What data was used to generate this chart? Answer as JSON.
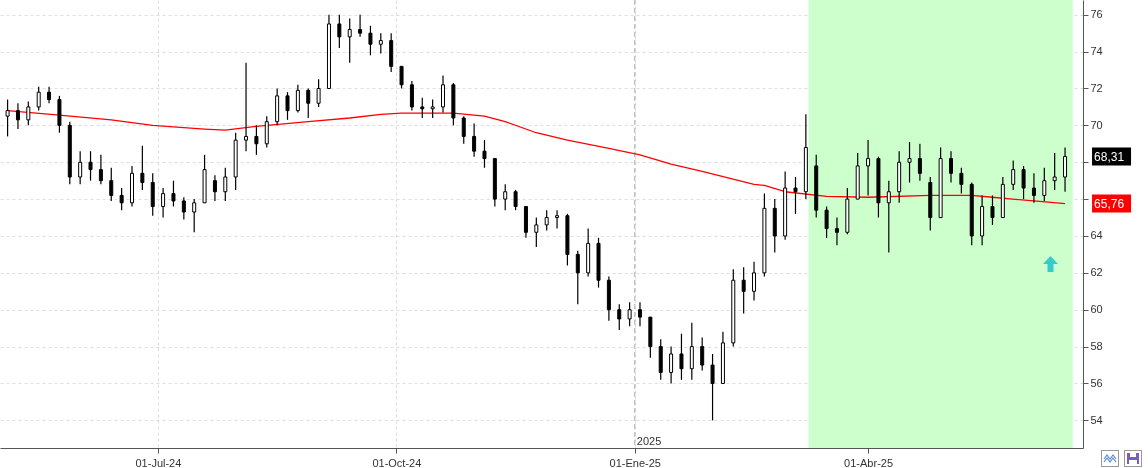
{
  "chart_data": {
    "type": "candlestick",
    "x": [
      "2024-05-04",
      "2024-05-08",
      "2024-05-12",
      "2024-05-16",
      "2024-05-20",
      "2024-05-24",
      "2024-05-28",
      "2024-06-01",
      "2024-06-05",
      "2024-06-09",
      "2024-06-13",
      "2024-06-17",
      "2024-06-21",
      "2024-06-25",
      "2024-06-29",
      "2024-07-03",
      "2024-07-07",
      "2024-07-11",
      "2024-07-15",
      "2024-07-19",
      "2024-07-23",
      "2024-07-27",
      "2024-07-31",
      "2024-08-04",
      "2024-08-08",
      "2024-08-12",
      "2024-08-16",
      "2024-08-20",
      "2024-08-24",
      "2024-08-28",
      "2024-09-01",
      "2024-09-05",
      "2024-09-09",
      "2024-09-13",
      "2024-09-17",
      "2024-09-21",
      "2024-09-25",
      "2024-09-29",
      "2024-10-03",
      "2024-10-07",
      "2024-10-11",
      "2024-10-15",
      "2024-10-19",
      "2024-10-23",
      "2024-10-27",
      "2024-10-31",
      "2024-11-04",
      "2024-11-08",
      "2024-11-12",
      "2024-11-16",
      "2024-11-20",
      "2024-11-24",
      "2024-11-28",
      "2024-12-02",
      "2024-12-06",
      "2024-12-10",
      "2024-12-14",
      "2024-12-18",
      "2024-12-22",
      "2024-12-26",
      "2024-12-30",
      "2025-01-03",
      "2025-01-07",
      "2025-01-11",
      "2025-01-15",
      "2025-01-19",
      "2025-01-23",
      "2025-01-27",
      "2025-01-31",
      "2025-02-04",
      "2025-02-08",
      "2025-02-12",
      "2025-02-16",
      "2025-02-20",
      "2025-02-24",
      "2025-02-28",
      "2025-03-04",
      "2025-03-08",
      "2025-03-12",
      "2025-03-16",
      "2025-03-20",
      "2025-03-24",
      "2025-03-28",
      "2025-04-01",
      "2025-04-05",
      "2025-04-09",
      "2025-04-13",
      "2025-04-17",
      "2025-04-21",
      "2025-04-25",
      "2025-04-29",
      "2025-05-03",
      "2025-05-07",
      "2025-05-11",
      "2025-05-15",
      "2025-05-19",
      "2025-05-23",
      "2025-05-27",
      "2025-05-31",
      "2025-06-04",
      "2025-06-08",
      "2025-06-12",
      "2025-06-16"
    ],
    "ohlc": [
      [
        70.5,
        71.4,
        69.4,
        70.8
      ],
      [
        70.8,
        71.2,
        69.8,
        70.3
      ],
      [
        70.3,
        71.3,
        70.0,
        71.0
      ],
      [
        71.0,
        72.1,
        70.8,
        71.8
      ],
      [
        71.8,
        72.1,
        71.2,
        71.4
      ],
      [
        71.4,
        71.6,
        69.6,
        70.0
      ],
      [
        70.0,
        70.2,
        66.8,
        67.2
      ],
      [
        67.2,
        68.6,
        66.8,
        68.0
      ],
      [
        68.0,
        68.6,
        67.0,
        67.6
      ],
      [
        67.6,
        68.4,
        66.8,
        67.0
      ],
      [
        67.0,
        67.7,
        65.9,
        66.2
      ],
      [
        66.2,
        66.6,
        65.4,
        65.8
      ],
      [
        65.8,
        67.8,
        65.6,
        67.4
      ],
      [
        67.4,
        68.9,
        66.5,
        66.9
      ],
      [
        66.9,
        67.4,
        65.1,
        65.6
      ],
      [
        65.6,
        66.6,
        65.0,
        66.3
      ],
      [
        66.3,
        67.0,
        65.6,
        65.9
      ],
      [
        65.9,
        66.1,
        64.9,
        65.3
      ],
      [
        65.3,
        66.0,
        64.2,
        65.8
      ],
      [
        65.8,
        68.4,
        65.8,
        67.6
      ],
      [
        67.0,
        67.3,
        65.9,
        66.4
      ],
      [
        66.4,
        67.7,
        65.9,
        67.2
      ],
      [
        67.2,
        69.6,
        66.5,
        69.2
      ],
      [
        69.2,
        73.4,
        68.6,
        69.4
      ],
      [
        69.4,
        70.0,
        68.4,
        69.0
      ],
      [
        69.0,
        70.5,
        68.8,
        70.2
      ],
      [
        70.2,
        72.0,
        70.0,
        71.6
      ],
      [
        71.6,
        71.8,
        70.3,
        70.8
      ],
      [
        70.8,
        72.2,
        70.7,
        71.9
      ],
      [
        71.9,
        72.0,
        70.4,
        71.2
      ],
      [
        71.2,
        72.5,
        71.0,
        72.0
      ],
      [
        72.0,
        76.0,
        72.0,
        75.5
      ],
      [
        75.5,
        76.0,
        74.2,
        74.8
      ],
      [
        74.8,
        75.8,
        73.4,
        75.2
      ],
      [
        75.2,
        76.0,
        74.8,
        75.0
      ],
      [
        75.0,
        75.4,
        73.8,
        74.4
      ],
      [
        74.4,
        75.0,
        73.9,
        74.6
      ],
      [
        74.6,
        75.0,
        72.9,
        73.2
      ],
      [
        73.2,
        73.2,
        72.0,
        72.2
      ],
      [
        72.2,
        72.4,
        70.8,
        71.0
      ],
      [
        71.0,
        71.5,
        70.4,
        70.9
      ],
      [
        70.9,
        71.4,
        70.4,
        71.0
      ],
      [
        71.0,
        72.7,
        70.7,
        72.2
      ],
      [
        72.2,
        72.3,
        70.0,
        70.4
      ],
      [
        70.4,
        70.5,
        69.0,
        69.4
      ],
      [
        69.4,
        70.1,
        68.3,
        68.6
      ],
      [
        68.6,
        69.2,
        67.7,
        68.2
      ],
      [
        68.2,
        68.2,
        65.6,
        66.0
      ],
      [
        66.0,
        66.8,
        65.4,
        66.4
      ],
      [
        66.4,
        66.5,
        65.4,
        65.6
      ],
      [
        65.6,
        65.6,
        63.9,
        64.2
      ],
      [
        64.2,
        65.0,
        63.4,
        64.6
      ],
      [
        64.6,
        65.4,
        64.3,
        65.0
      ],
      [
        65.0,
        65.4,
        64.4,
        65.1
      ],
      [
        65.1,
        65.2,
        62.4,
        63.0
      ],
      [
        63.0,
        63.2,
        60.3,
        62.0
      ],
      [
        62.0,
        64.4,
        61.8,
        63.6
      ],
      [
        63.6,
        63.9,
        61.2,
        61.6
      ],
      [
        61.6,
        61.8,
        59.4,
        60.0
      ],
      [
        60.0,
        60.3,
        58.9,
        59.5
      ],
      [
        59.5,
        60.4,
        59.1,
        60.0
      ],
      [
        60.0,
        60.4,
        59.1,
        59.6
      ],
      [
        59.6,
        59.6,
        57.4,
        58.0
      ],
      [
        58.0,
        58.4,
        56.2,
        56.6
      ],
      [
        56.6,
        58.0,
        56.0,
        57.6
      ],
      [
        57.6,
        58.7,
        56.2,
        56.8
      ],
      [
        56.8,
        59.3,
        56.2,
        58.0
      ],
      [
        58.0,
        58.5,
        56.7,
        57.0
      ],
      [
        57.0,
        57.6,
        54.0,
        56.0
      ],
      [
        56.0,
        58.8,
        56.0,
        58.2
      ],
      [
        58.2,
        62.2,
        58.0,
        61.6
      ],
      [
        61.6,
        62.3,
        59.8,
        61.0
      ],
      [
        61.0,
        62.6,
        60.5,
        62.0
      ],
      [
        62.0,
        66.3,
        61.8,
        65.5
      ],
      [
        65.5,
        66.0,
        63.1,
        64.0
      ],
      [
        64.0,
        67.5,
        63.8,
        66.6
      ],
      [
        66.6,
        67.2,
        65.2,
        66.4
      ],
      [
        66.4,
        70.6,
        66.0,
        68.8
      ],
      [
        67.8,
        68.4,
        65.0,
        65.4
      ],
      [
        65.4,
        65.6,
        63.9,
        64.4
      ],
      [
        64.4,
        65.0,
        63.5,
        64.2
      ],
      [
        64.2,
        66.6,
        64.1,
        66.0
      ],
      [
        66.0,
        68.5,
        66.0,
        67.8
      ],
      [
        67.8,
        69.2,
        66.2,
        68.2
      ],
      [
        68.2,
        68.3,
        65.0,
        65.8
      ],
      [
        65.8,
        67.0,
        63.1,
        66.4
      ],
      [
        66.4,
        68.6,
        65.8,
        68.0
      ],
      [
        68.0,
        69.1,
        66.9,
        68.2
      ],
      [
        68.2,
        69.0,
        67.0,
        67.4
      ],
      [
        66.9,
        67.2,
        64.3,
        65.0
      ],
      [
        65.0,
        68.8,
        65.0,
        68.2
      ],
      [
        68.2,
        68.6,
        66.9,
        67.4
      ],
      [
        67.4,
        67.7,
        66.3,
        66.8
      ],
      [
        66.8,
        66.9,
        63.5,
        64.0
      ],
      [
        64.0,
        66.2,
        63.5,
        65.6
      ],
      [
        65.6,
        66.2,
        64.6,
        65.0
      ],
      [
        65.0,
        67.2,
        65.0,
        66.8
      ],
      [
        66.8,
        68.1,
        66.5,
        67.6
      ],
      [
        67.6,
        67.8,
        66.0,
        66.6
      ],
      [
        66.6,
        67.4,
        65.8,
        66.2
      ],
      [
        66.2,
        67.7,
        65.9,
        67.0
      ],
      [
        67.0,
        68.5,
        66.5,
        67.2
      ],
      [
        67.2,
        68.8,
        66.4,
        68.31
      ]
    ],
    "series": [
      {
        "type": "line",
        "color": "#ff0000",
        "x": [
          "2024-05-04",
          "2024-05-24",
          "2024-06-13",
          "2024-06-29",
          "2024-07-19",
          "2024-07-27",
          "2024-08-08",
          "2024-08-28",
          "2024-09-13",
          "2024-09-25",
          "2024-10-03",
          "2024-10-23",
          "2024-11-04",
          "2024-11-12",
          "2024-11-24",
          "2024-12-06",
          "2024-12-22",
          "2025-01-03",
          "2025-01-15",
          "2025-01-27",
          "2025-02-16",
          "2025-02-20",
          "2025-02-28",
          "2025-03-16",
          "2025-04-01",
          "2025-04-25",
          "2025-05-11",
          "2025-05-19",
          "2025-06-04",
          "2025-06-16"
        ],
        "values": [
          70.8,
          70.55,
          70.3,
          70.0,
          69.8,
          69.74,
          69.95,
          70.2,
          70.4,
          70.6,
          70.66,
          70.66,
          70.5,
          70.2,
          69.6,
          69.2,
          68.75,
          68.4,
          67.9,
          67.5,
          66.8,
          66.74,
          66.4,
          66.15,
          66.1,
          66.2,
          66.2,
          66.1,
          65.9,
          65.76
        ]
      }
    ],
    "xlim": [
      "2024-05-03",
      "2025-06-21"
    ],
    "xticks": [
      {
        "value": "2024-07-01",
        "label": "01-Jul-24"
      },
      {
        "value": "2024-10-01",
        "label": "01-Oct-24"
      },
      {
        "value": "2025-01-01",
        "label": "01-Ene-25"
      },
      {
        "value": "2025-04-01",
        "label": "01-Abr-25"
      }
    ],
    "ylim": [
      52.5,
      76.8
    ],
    "yticks": [
      54,
      56,
      58,
      60,
      62,
      64,
      {
        "value": 66,
        "label": null
      },
      {
        "value": 68,
        "label": null
      },
      70,
      72,
      74,
      76
    ],
    "grid": true,
    "line_style": "solid",
    "bands": [
      {
        "axis": "x",
        "from": "2025-03-09",
        "to": "2025-06-19",
        "color": "#ccffcc"
      }
    ],
    "ref_lines": [
      {
        "axis": "x",
        "value": "2025-01-01",
        "label": "2025",
        "color": "#aaaaaa",
        "line_style": "dashed"
      }
    ],
    "annotations": [
      {
        "text": "68,31",
        "x": "2025-06-16",
        "y": 68.31
      },
      {
        "text": "65,76",
        "x": "2025-06-16",
        "y": 65.76
      }
    ]
  }
}
